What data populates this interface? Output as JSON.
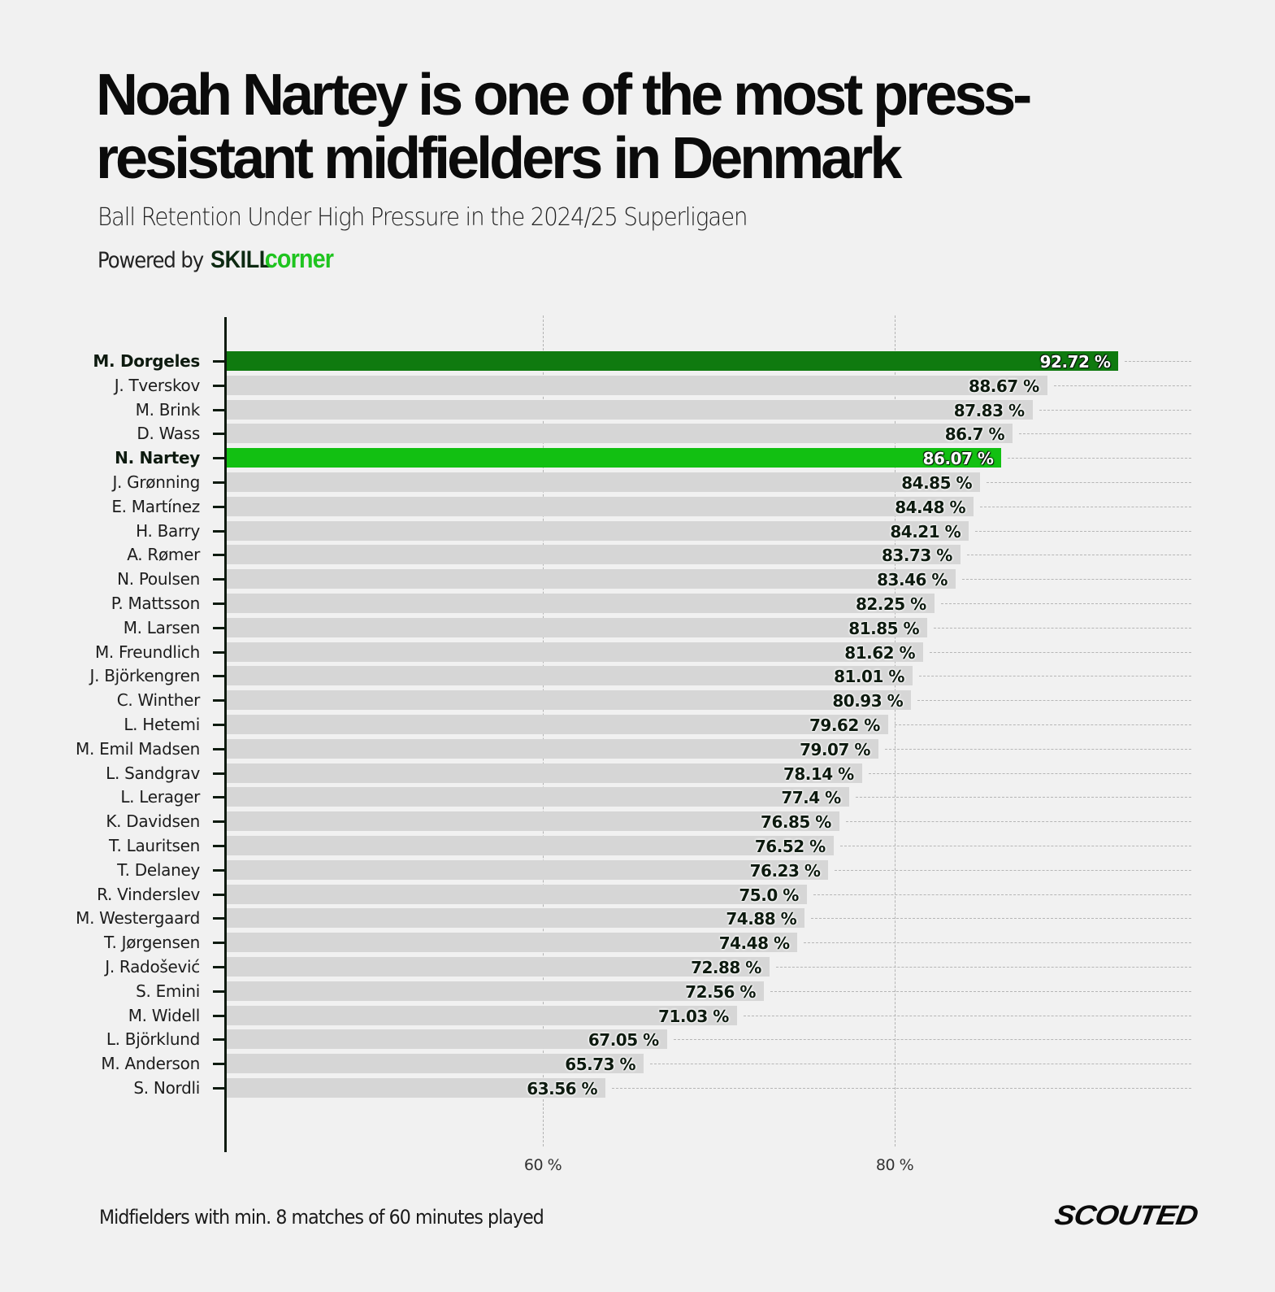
{
  "header": {
    "title": "Noah Nartey is one of the most press-resistant midfielders in Denmark",
    "subtitle": "Ball Retention Under High Pressure in the 2024/25 Superligaen",
    "powered_by_label": "Powered by",
    "brand_part1": "SKILL",
    "brand_part2": "corner"
  },
  "footer": {
    "note": "Midfielders with min. 8 matches of 60 minutes played",
    "logo": "SCOUTED"
  },
  "colors": {
    "highlight_dark": "#0f7a0f",
    "highlight_light": "#12c012",
    "bar_default": "#d6d6d6",
    "background": "#f1f1f1"
  },
  "chart_data": {
    "type": "bar",
    "orientation": "horizontal",
    "title": "Noah Nartey is one of the most press-resistant midfielders in Denmark",
    "subtitle": "Ball Retention Under High Pressure in the 2024/25 Superligaen",
    "xlabel": "",
    "ylabel": "",
    "x_ticks": [
      "60 %",
      "80 %"
    ],
    "x_tick_values": [
      60,
      80
    ],
    "xlim": [
      41.8,
      92.72
    ],
    "grid": "vertical dashed at ticks; horizontal dashed trailing lines after each bar",
    "unit": "%",
    "highlighted": {
      "M. Dorgeles": "dark-green",
      "N. Nartey": "bright-green"
    },
    "categories": [
      "M. Dorgeles",
      "J. Tverskov",
      "M. Brink",
      "D. Wass",
      "N. Nartey",
      "J. Grønning",
      "E. Martínez",
      "H. Barry",
      "A. Rømer",
      "N. Poulsen",
      "P. Mattsson",
      "M. Larsen",
      "M. Freundlich",
      "J. Björkengren",
      "C. Winther",
      "L. Hetemi",
      "M. Emil Madsen",
      "L. Sandgrav",
      "L. Lerager",
      "K. Davidsen",
      "T. Lauritsen",
      "T. Delaney",
      "R. Vinderslev",
      "M. Westergaard",
      "T. Jørgensen",
      "J. Radošević",
      "S. Emini",
      "M. Widell",
      "L. Björklund",
      "M. Anderson",
      "S. Nordli"
    ],
    "values": [
      92.72,
      88.67,
      87.83,
      86.7,
      86.07,
      84.85,
      84.48,
      84.21,
      83.73,
      83.46,
      82.25,
      81.85,
      81.62,
      81.01,
      80.93,
      79.62,
      79.07,
      78.14,
      77.4,
      76.85,
      76.52,
      76.23,
      75.0,
      74.88,
      74.48,
      72.88,
      72.56,
      71.03,
      67.05,
      65.73,
      63.56
    ],
    "value_labels": [
      "92.72 %",
      "88.67 %",
      "87.83 %",
      "86.7 %",
      "86.07 %",
      "84.85 %",
      "84.48 %",
      "84.21 %",
      "83.73 %",
      "83.46 %",
      "82.25 %",
      "81.85 %",
      "81.62 %",
      "81.01 %",
      "80.93 %",
      "79.62 %",
      "79.07 %",
      "78.14 %",
      "77.4 %",
      "76.85 %",
      "76.52 %",
      "76.23 %",
      "75.0 %",
      "74.88 %",
      "74.48 %",
      "72.88 %",
      "72.56 %",
      "71.03 %",
      "67.05 %",
      "65.73 %",
      "63.56 %"
    ]
  }
}
